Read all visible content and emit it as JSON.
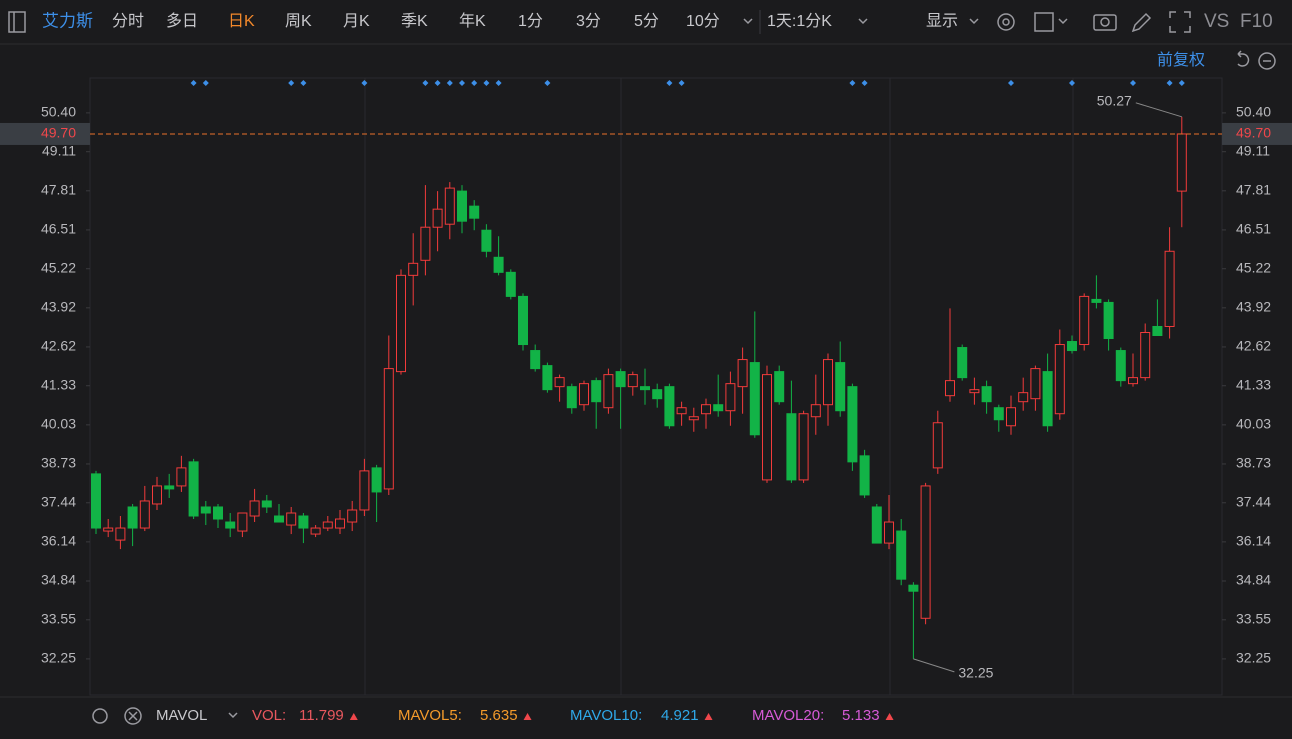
{
  "toolbar": {
    "symbol": "艾力斯",
    "periods": [
      "分时",
      "多日",
      "日K",
      "周K",
      "月K",
      "季K",
      "年K",
      "1分",
      "3分",
      "5分",
      "10分"
    ],
    "active": 2,
    "interval": "1天:1分K",
    "display": "显示",
    "vs": "VS",
    "f10": "F10",
    "adjust": "前复权"
  },
  "chart_data": {
    "type": "candlestick",
    "up_color": "#f23b3b",
    "down_color": "#12b347",
    "ylim": [
      31.05,
      51.56
    ],
    "yticks": [
      {
        "value": 50.4,
        "label": "50.40"
      },
      49.11,
      47.81,
      46.51,
      45.22,
      43.92,
      42.62,
      41.33,
      40.03,
      38.73,
      37.44,
      36.14,
      34.84,
      33.55,
      32.25
    ],
    "last_price": {
      "value": 49.7,
      "label": "49.70"
    },
    "open": [
      38.4,
      36.5,
      36.2,
      37.3,
      36.6,
      37.4,
      38.0,
      38.0,
      38.8,
      37.3,
      37.3,
      36.8,
      36.5,
      37.0,
      37.5,
      37.0,
      36.7,
      37.0,
      36.4,
      36.6,
      36.6,
      36.8,
      37.2,
      38.6,
      37.9,
      41.8,
      45.0,
      45.5,
      46.6,
      46.7,
      47.8,
      47.3,
      46.5,
      45.6,
      45.1,
      44.3,
      42.5,
      42.0,
      41.3,
      41.3,
      40.7,
      41.5,
      40.6,
      41.8,
      41.3,
      41.3,
      41.2,
      41.3,
      40.4,
      40.2,
      40.4,
      40.7,
      40.5,
      41.3,
      42.1,
      38.2,
      41.8,
      40.4,
      38.2,
      40.3,
      40.7,
      42.1,
      41.3,
      39.0,
      37.3,
      36.1,
      36.5,
      34.7,
      33.6,
      38.6,
      41.0,
      42.6,
      41.1,
      41.3,
      40.6,
      40.0,
      40.8,
      40.9,
      41.8,
      40.4,
      42.8,
      42.7,
      44.2,
      44.1,
      42.5,
      41.4,
      41.6,
      43.3,
      43.3,
      47.8
    ],
    "high": [
      38.5,
      36.9,
      37.0,
      37.4,
      38.0,
      38.3,
      38.4,
      39.0,
      38.9,
      37.5,
      37.4,
      37.1,
      37.1,
      37.9,
      37.7,
      37.4,
      37.3,
      37.1,
      36.7,
      37.0,
      37.2,
      37.5,
      38.9,
      38.7,
      43.0,
      45.2,
      46.4,
      48.0,
      47.8,
      48.1,
      48.0,
      47.5,
      46.7,
      46.3,
      45.2,
      44.4,
      42.7,
      42.1,
      41.7,
      41.4,
      41.5,
      41.6,
      41.9,
      41.9,
      41.8,
      41.9,
      41.4,
      41.4,
      40.8,
      40.6,
      40.9,
      41.7,
      41.8,
      42.6,
      43.8,
      42.0,
      42.0,
      41.5,
      40.5,
      41.7,
      42.4,
      42.8,
      41.4,
      39.2,
      37.4,
      37.7,
      36.9,
      34.8,
      38.1,
      40.5,
      43.9,
      42.7,
      41.6,
      41.5,
      40.7,
      41.0,
      41.6,
      42.0,
      42.4,
      43.2,
      43.0,
      44.4,
      45.0,
      44.2,
      42.6,
      42.4,
      43.4,
      44.2,
      46.6,
      50.27
    ],
    "low": [
      36.4,
      36.3,
      35.9,
      36.0,
      36.5,
      37.2,
      37.6,
      37.8,
      36.9,
      36.7,
      36.6,
      36.3,
      36.3,
      36.8,
      37.1,
      36.8,
      36.4,
      36.1,
      36.3,
      36.5,
      36.4,
      36.5,
      37.0,
      36.8,
      37.7,
      41.7,
      44.0,
      45.0,
      45.8,
      46.2,
      46.4,
      46.5,
      45.6,
      45.0,
      44.2,
      42.5,
      41.8,
      41.1,
      40.8,
      40.4,
      40.5,
      39.9,
      40.4,
      39.9,
      41.0,
      40.7,
      40.6,
      39.9,
      40.0,
      39.8,
      39.9,
      40.3,
      40.0,
      40.4,
      39.6,
      38.1,
      40.7,
      38.1,
      38.1,
      39.7,
      40.0,
      40.3,
      38.5,
      37.6,
      36.1,
      35.9,
      34.7,
      32.25,
      33.4,
      38.4,
      40.8,
      41.5,
      40.7,
      40.4,
      39.8,
      39.7,
      40.5,
      40.5,
      39.8,
      40.2,
      42.4,
      42.5,
      43.9,
      42.5,
      41.3,
      41.3,
      41.5,
      43.0,
      42.9,
      46.6
    ],
    "close": [
      36.6,
      36.6,
      36.6,
      36.6,
      37.5,
      38.0,
      37.9,
      38.6,
      37.0,
      37.1,
      36.9,
      36.6,
      37.1,
      37.5,
      37.3,
      36.8,
      37.1,
      36.6,
      36.6,
      36.8,
      36.9,
      37.2,
      38.5,
      37.8,
      41.9,
      45.0,
      45.4,
      46.6,
      47.2,
      47.9,
      46.8,
      46.9,
      45.8,
      45.1,
      44.3,
      42.7,
      41.9,
      41.2,
      41.6,
      40.6,
      41.4,
      40.8,
      41.7,
      41.3,
      41.7,
      41.2,
      40.9,
      40.0,
      40.6,
      40.3,
      40.7,
      40.5,
      41.4,
      42.2,
      39.7,
      41.7,
      40.8,
      38.2,
      40.4,
      40.7,
      42.2,
      40.5,
      38.8,
      37.7,
      36.1,
      36.8,
      34.9,
      34.5,
      38.0,
      40.1,
      41.5,
      41.6,
      41.2,
      40.8,
      40.2,
      40.6,
      41.1,
      41.9,
      40.0,
      42.7,
      42.5,
      44.3,
      44.1,
      42.9,
      41.5,
      41.6,
      43.1,
      43.0,
      45.8,
      49.7
    ]
  },
  "indicator": {
    "name": "MAVOL",
    "items": [
      {
        "label": "VOL:",
        "value": 11.799,
        "color": "#e8585e"
      },
      {
        "label": "MAVOL5:",
        "value": 5.635,
        "color": "#f39a2b"
      },
      {
        "label": "MAVOL10:",
        "value": 4.921,
        "color": "#2fa8e8"
      },
      {
        "label": "MAVOL20:",
        "value": 5.133,
        "color": "#d65ad6"
      }
    ]
  }
}
